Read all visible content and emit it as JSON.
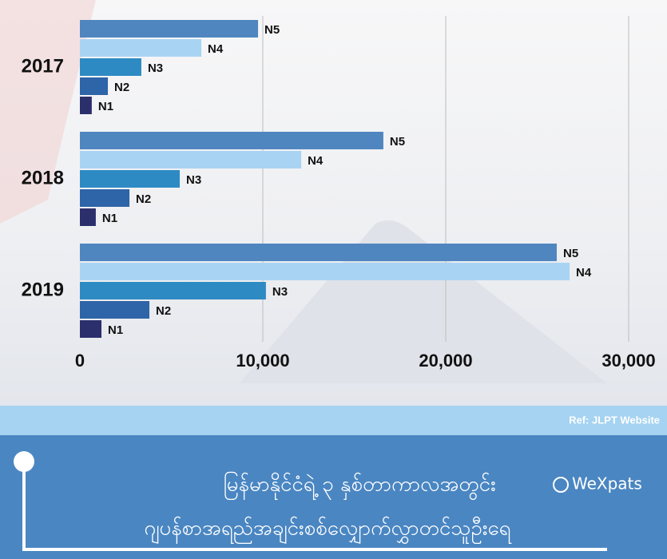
{
  "chart_data": {
    "type": "bar",
    "orientation": "horizontal",
    "categories": [
      "2017",
      "2018",
      "2019"
    ],
    "series": [
      {
        "name": "N5",
        "color": "#4f86c0",
        "values": [
          9740,
          16590,
          26070
        ]
      },
      {
        "name": "N4",
        "color": "#a9d3f3",
        "values": [
          6640,
          12100,
          26770
        ]
      },
      {
        "name": "N3",
        "color": "#2e8ac3",
        "values": [
          3360,
          5460,
          10170
        ]
      },
      {
        "name": "N2",
        "color": "#2e64a8",
        "values": [
          1530,
          2710,
          3800
        ]
      },
      {
        "name": "N1",
        "color": "#2b2f6c",
        "values": [
          650,
          870,
          1180
        ]
      }
    ],
    "xlim": [
      0,
      30000
    ],
    "xticks": [
      0,
      {
        "value": 10000,
        "label": "10,000"
      },
      {
        "value": 20000,
        "label": "20,000"
      },
      {
        "value": 30000,
        "label": "30,000"
      }
    ],
    "grid": true
  },
  "footer": {
    "ref": "Ref: JLPT Website",
    "title_lines": [
      "မြန်မာနိုင်ငံရဲ့ ၃ နှစ်တာကာလအတွင်း",
      "ဂျပန်စာအရည်အချင်းစစ်လျှောက်လွှာတင်သူဦးရေ"
    ],
    "brand": "WeXpats"
  }
}
